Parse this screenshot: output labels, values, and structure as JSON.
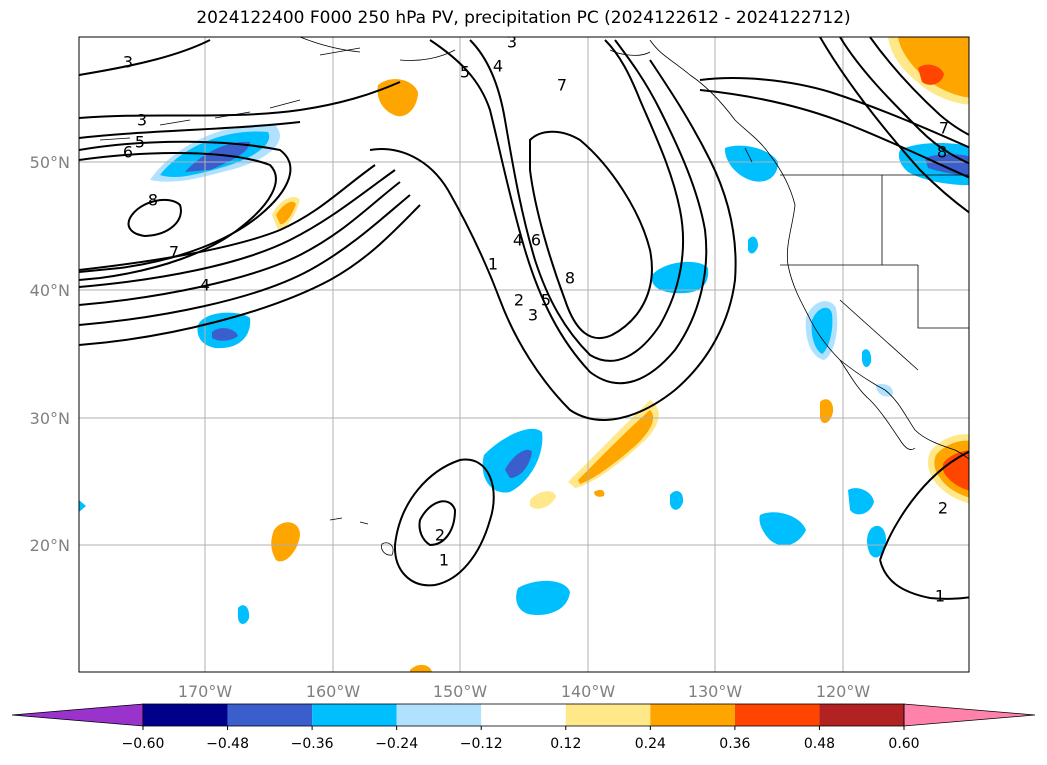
{
  "title": "2024122400 F000 250 hPa PV, precipitation PC (2024122612 - 2024122712)",
  "lat_labels": [
    "50°N",
    "40°N",
    "30°N",
    "20°N"
  ],
  "lon_labels": [
    "170°W",
    "160°W",
    "150°W",
    "140°W",
    "130°W",
    "120°W"
  ],
  "colorbar": {
    "ticks": [
      "−0.60",
      "−0.48",
      "−0.36",
      "−0.24",
      "−0.12",
      "0.12",
      "0.24",
      "0.36",
      "0.48",
      "0.60"
    ],
    "colors": [
      "#9933cc",
      "#00008b",
      "#3a5fcd",
      "#00bfff",
      "#b0e2ff",
      "#ffffff",
      "#ffe88a",
      "#ffa500",
      "#ff4500",
      "#b22222",
      "#ff82ab"
    ]
  },
  "contour_labels": [
    "3",
    "5",
    "4",
    "7",
    "3",
    "5",
    "6",
    "8",
    "7",
    "4",
    "4",
    "6",
    "8",
    "1",
    "2",
    "5",
    "3",
    "2",
    "1",
    "2",
    "1",
    "7",
    "8"
  ],
  "colors": {
    "strong_neg": "#3a5fcd",
    "neg": "#00bfff",
    "weak_neg": "#b0e2ff",
    "weak_pos": "#ffe88a",
    "pos": "#ffa500",
    "strong_pos": "#ff4500"
  }
}
